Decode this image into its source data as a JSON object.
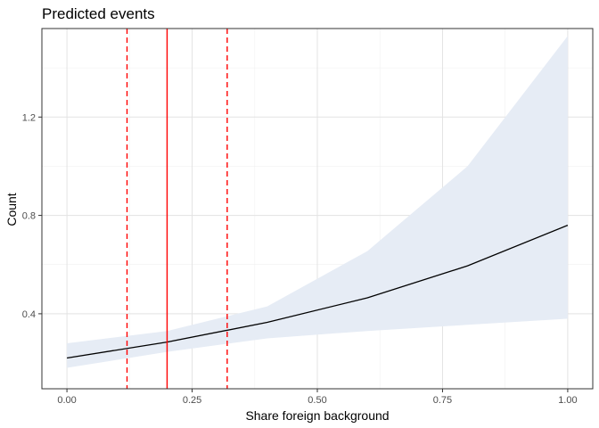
{
  "chart_data": {
    "type": "line",
    "title": "Predicted events",
    "xlabel": "Share foreign background",
    "ylabel": "Count",
    "xlim": [
      -0.05,
      1.05
    ],
    "ylim": [
      0.095,
      1.56
    ],
    "x_ticks": [
      0.0,
      0.25,
      0.5,
      0.75,
      1.0
    ],
    "x_tick_labels": [
      "0.00",
      "0.25",
      "0.50",
      "0.75",
      "1.00"
    ],
    "y_ticks": [
      0.4,
      0.8,
      1.2
    ],
    "y_tick_labels": [
      "0.4",
      "0.8",
      "1.2"
    ],
    "grid": true,
    "series": [
      {
        "x": [
          0.0,
          0.2,
          0.4,
          0.6,
          0.8,
          1.0
        ],
        "y": [
          0.22,
          0.285,
          0.365,
          0.465,
          0.595,
          0.76
        ],
        "lower": [
          0.18,
          0.245,
          0.3,
          0.33,
          0.355,
          0.38
        ],
        "upper": [
          0.28,
          0.33,
          0.43,
          0.655,
          1.0,
          1.53
        ],
        "color": "#000000",
        "band_color": "#e6ecf5"
      }
    ],
    "vlines": [
      {
        "x": 0.12,
        "style": "dashed",
        "color": "#ff0000"
      },
      {
        "x": 0.2,
        "style": "solid",
        "color": "#ff0000"
      },
      {
        "x": 0.32,
        "style": "dashed",
        "color": "#ff0000"
      }
    ]
  }
}
